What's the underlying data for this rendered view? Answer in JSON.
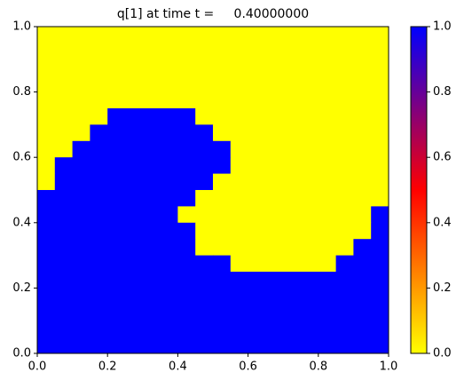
{
  "chart_data": {
    "type": "heatmap",
    "title": "q[1] at time t =     0.40000000",
    "x": [
      0.025,
      0.075,
      0.125,
      0.175,
      0.225,
      0.275,
      0.325,
      0.375,
      0.425,
      0.475,
      0.525,
      0.575,
      0.625,
      0.675,
      0.725,
      0.775,
      0.825,
      0.875,
      0.925,
      0.975
    ],
    "y": [
      0.975,
      0.925,
      0.875,
      0.825,
      0.775,
      0.725,
      0.675,
      0.625,
      0.575,
      0.525,
      0.475,
      0.425,
      0.375,
      0.325,
      0.275,
      0.225,
      0.175,
      0.125,
      0.075,
      0.025
    ],
    "z": [
      [
        0,
        0,
        0,
        0,
        0,
        0,
        0,
        0,
        0,
        0,
        0,
        0,
        0,
        0,
        0,
        0,
        0,
        0,
        0,
        0
      ],
      [
        0,
        0,
        0,
        0,
        0,
        0,
        0,
        0,
        0,
        0,
        0,
        0,
        0,
        0,
        0,
        0,
        0,
        0,
        0,
        0
      ],
      [
        0,
        0,
        0,
        0,
        0,
        0,
        0,
        0,
        0,
        0,
        0,
        0,
        0,
        0,
        0,
        0,
        0,
        0,
        0,
        0
      ],
      [
        0,
        0,
        0,
        0,
        0,
        0,
        0,
        0,
        0,
        0,
        0,
        0,
        0,
        0,
        0,
        0,
        0,
        0,
        0,
        0
      ],
      [
        0,
        0,
        0,
        0,
        0,
        0,
        0,
        0,
        0,
        0,
        0,
        0,
        0,
        0,
        0,
        0,
        0,
        0,
        0,
        0
      ],
      [
        0,
        0,
        0,
        0,
        1,
        1,
        1,
        1,
        1,
        0,
        0,
        0,
        0,
        0,
        0,
        0,
        0,
        0,
        0,
        0
      ],
      [
        0,
        0,
        0,
        1,
        1,
        1,
        1,
        1,
        1,
        1,
        0,
        0,
        0,
        0,
        0,
        0,
        0,
        0,
        0,
        0
      ],
      [
        0,
        0,
        1,
        1,
        1,
        1,
        1,
        1,
        1,
        1,
        1,
        0,
        0,
        0,
        0,
        0,
        0,
        0,
        0,
        0
      ],
      [
        0,
        1,
        1,
        1,
        1,
        1,
        1,
        1,
        1,
        1,
        1,
        0,
        0,
        0,
        0,
        0,
        0,
        0,
        0,
        0
      ],
      [
        0,
        1,
        1,
        1,
        1,
        1,
        1,
        1,
        1,
        1,
        0,
        0,
        0,
        0,
        0,
        0,
        0,
        0,
        0,
        0
      ],
      [
        1,
        1,
        1,
        1,
        1,
        1,
        1,
        1,
        1,
        0,
        0,
        0,
        0,
        0,
        0,
        0,
        0,
        0,
        0,
        0
      ],
      [
        1,
        1,
        1,
        1,
        1,
        1,
        1,
        1,
        0,
        0,
        0,
        0,
        0,
        0,
        0,
        0,
        0,
        0,
        0,
        1
      ],
      [
        1,
        1,
        1,
        1,
        1,
        1,
        1,
        1,
        1,
        0,
        0,
        0,
        0,
        0,
        0,
        0,
        0,
        0,
        0,
        1
      ],
      [
        1,
        1,
        1,
        1,
        1,
        1,
        1,
        1,
        1,
        0,
        0,
        0,
        0,
        0,
        0,
        0,
        0,
        0,
        1,
        1
      ],
      [
        1,
        1,
        1,
        1,
        1,
        1,
        1,
        1,
        1,
        1,
        1,
        0,
        0,
        0,
        0,
        0,
        0,
        1,
        1,
        1
      ],
      [
        1,
        1,
        1,
        1,
        1,
        1,
        1,
        1,
        1,
        1,
        1,
        1,
        1,
        1,
        1,
        1,
        1,
        1,
        1,
        1
      ],
      [
        1,
        1,
        1,
        1,
        1,
        1,
        1,
        1,
        1,
        1,
        1,
        1,
        1,
        1,
        1,
        1,
        1,
        1,
        1,
        1
      ],
      [
        1,
        1,
        1,
        1,
        1,
        1,
        1,
        1,
        1,
        1,
        1,
        1,
        1,
        1,
        1,
        1,
        1,
        1,
        1,
        1
      ],
      [
        1,
        1,
        1,
        1,
        1,
        1,
        1,
        1,
        1,
        1,
        1,
        1,
        1,
        1,
        1,
        1,
        1,
        1,
        1,
        1
      ],
      [
        1,
        1,
        1,
        1,
        1,
        1,
        1,
        1,
        1,
        1,
        1,
        1,
        1,
        1,
        1,
        1,
        1,
        1,
        1,
        1
      ]
    ],
    "colors": [
      "#ffff00",
      "#ff0000",
      "#0000ff"
    ],
    "xlim": [
      0,
      1
    ],
    "ylim": [
      0,
      1
    ],
    "zlim": [
      0,
      1
    ],
    "xticks": [
      {
        "value": 0,
        "label": "0.0"
      },
      0.2,
      0.4,
      0.6,
      0.8,
      {
        "value": 1,
        "label": "1.0"
      }
    ],
    "yticks": [
      {
        "value": 0,
        "label": "0.0"
      },
      0.2,
      0.4,
      0.6,
      0.8,
      {
        "value": 1,
        "label": "1.0"
      }
    ],
    "zticks": [
      {
        "value": 0,
        "label": "0.0"
      },
      0.2,
      0.4,
      0.6,
      0.8,
      {
        "value": 1,
        "label": "1.0"
      }
    ]
  }
}
